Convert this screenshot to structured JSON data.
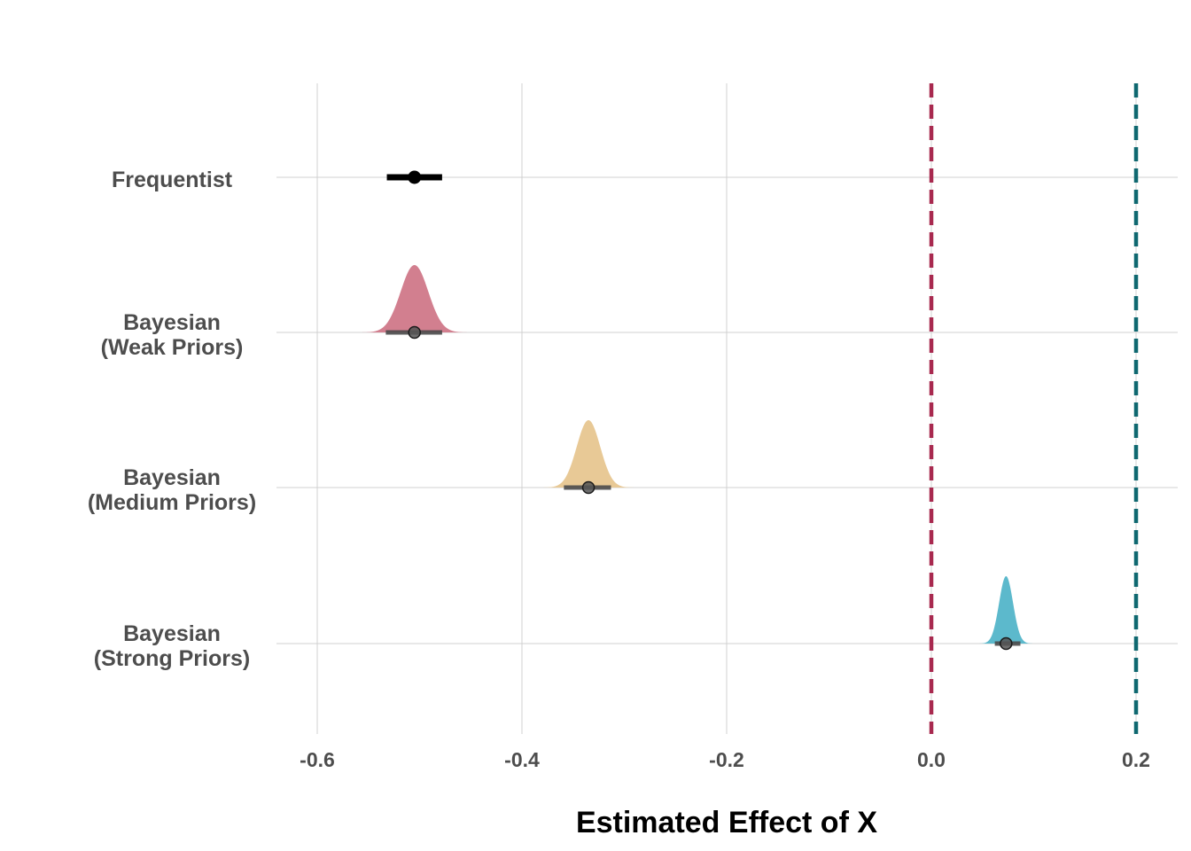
{
  "chart_data": {
    "type": "interval-density",
    "title": "",
    "xlabel": "Estimated Effect of X",
    "ylabel": "",
    "xlim": [
      -0.64,
      0.24
    ],
    "x_ticks": [
      -0.6,
      -0.4,
      -0.2,
      0.0,
      0.2
    ],
    "x_tick_labels": [
      "-0.6",
      "-0.4",
      "-0.2",
      "0.0",
      "0.2"
    ],
    "grid": true,
    "legend": "none",
    "reference_lines": [
      {
        "x": 0.0,
        "color": "#a8294f",
        "style": "dashed"
      },
      {
        "x": 0.2,
        "color": "#0f6870",
        "style": "dashed"
      }
    ],
    "series": [
      {
        "name": "Frequentist",
        "label_lines": [
          "Frequentist"
        ],
        "estimate": -0.505,
        "lower": -0.532,
        "upper": -0.478,
        "density": false,
        "color": "#000000"
      },
      {
        "name": "Bayesian (Weak Priors)",
        "label_lines": [
          "Bayesian",
          "(Weak Priors)"
        ],
        "estimate": -0.505,
        "lower": -0.533,
        "upper": -0.478,
        "density": true,
        "sd": 0.0135,
        "color": "#d27f8f"
      },
      {
        "name": "Bayesian (Medium Priors)",
        "label_lines": [
          "Bayesian",
          "(Medium Priors)"
        ],
        "estimate": -0.335,
        "lower": -0.359,
        "upper": -0.313,
        "density": true,
        "sd": 0.0115,
        "color": "#e8c996"
      },
      {
        "name": "Bayesian (Strong Priors)",
        "label_lines": [
          "Bayesian",
          "(Strong Priors)"
        ],
        "estimate": 0.073,
        "lower": 0.062,
        "upper": 0.087,
        "density": true,
        "sd": 0.0068,
        "color": "#5cb9cc"
      }
    ]
  }
}
